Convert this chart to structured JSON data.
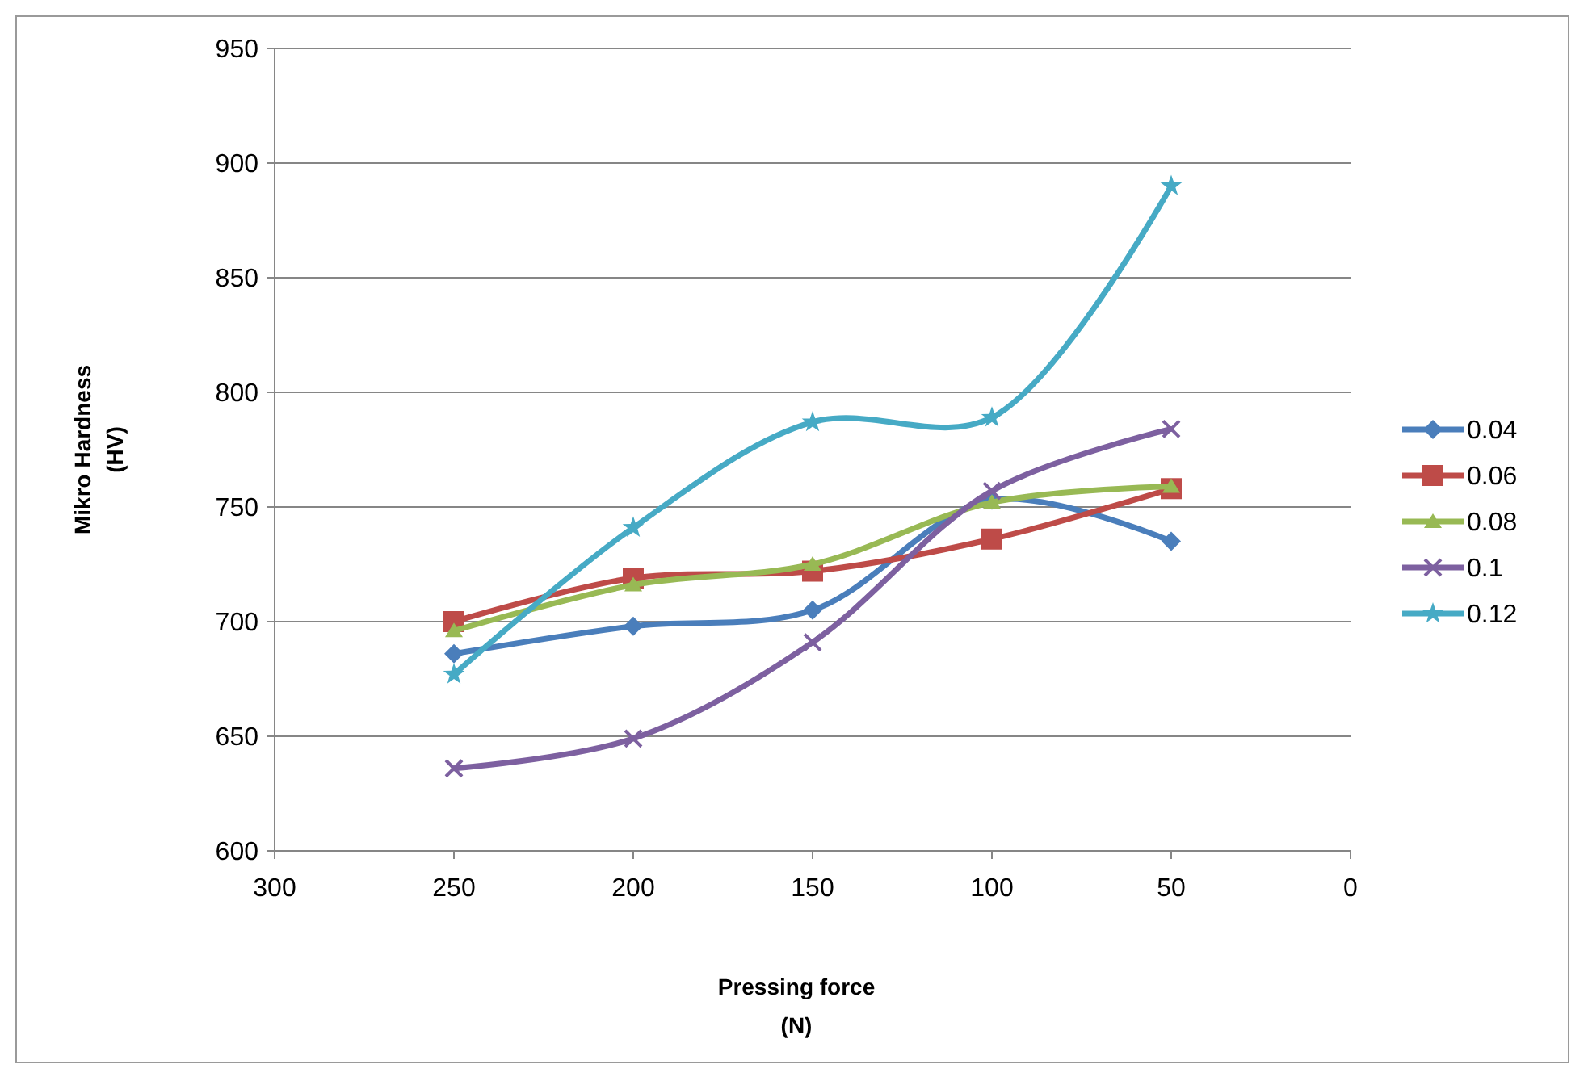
{
  "chart_data": {
    "type": "line",
    "xlabel": "Pressing force\n(N)",
    "ylabel": "Mikro Hardness\n(HV)",
    "x": [
      250,
      200,
      150,
      100,
      50
    ],
    "xlim": [
      300,
      0
    ],
    "xticks": [
      300,
      250,
      200,
      150,
      100,
      50,
      0
    ],
    "ylim": [
      600,
      950
    ],
    "yticks": [
      600,
      650,
      700,
      750,
      800,
      850,
      900,
      950
    ],
    "grid": "y",
    "legend": "right",
    "series": [
      {
        "name": "0.04",
        "color": "#4a7ebb",
        "marker": "diamond",
        "values": [
          686,
          698,
          705,
          753,
          735
        ]
      },
      {
        "name": "0.06",
        "color": "#be4b48",
        "marker": "square",
        "values": [
          700,
          719,
          722,
          736,
          758
        ]
      },
      {
        "name": "0.08",
        "color": "#98b954",
        "marker": "triangle",
        "values": [
          696,
          716,
          725,
          752,
          759
        ]
      },
      {
        "name": "0.1",
        "color": "#7d60a0",
        "marker": "cross",
        "values": [
          636,
          649,
          691,
          757,
          784
        ]
      },
      {
        "name": "0.12",
        "color": "#46aac5",
        "marker": "star",
        "values": [
          677,
          741,
          787,
          789,
          890
        ]
      }
    ]
  }
}
